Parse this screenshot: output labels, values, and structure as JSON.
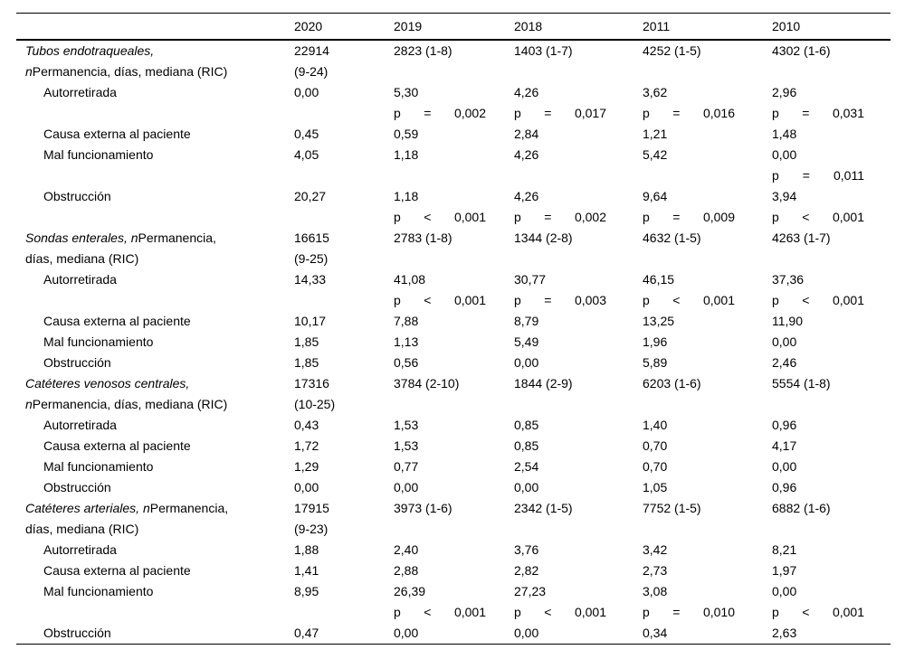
{
  "table": {
    "columns": [
      "",
      "2020",
      "2019",
      "2018",
      "2011",
      "2010"
    ],
    "rows": [
      {
        "type": "group",
        "segments": [
          {
            "t": "Tubos endotraqueales,",
            "i": 1
          },
          {
            "br": 1
          },
          {
            "t": "n",
            "i": 1
          },
          {
            "t": "Permanencia, días, mediana (RIC)",
            "i": 0
          }
        ],
        "values": [
          "22914\n(9-24)",
          "2823 (1-8)",
          "1403 (1-7)",
          "4252 (1-5)",
          "4302 (1-6)"
        ]
      },
      {
        "type": "sub",
        "label": "Autorretirada",
        "values": [
          "0,00",
          "5,30",
          "4,26",
          "3,62",
          "2,96"
        ]
      },
      {
        "type": "p",
        "values": [
          null,
          {
            "op": "=",
            "v": "0,002"
          },
          {
            "op": "=",
            "v": "0,017"
          },
          {
            "op": "=",
            "v": "0,016"
          },
          {
            "op": "=",
            "v": "0,031"
          }
        ]
      },
      {
        "type": "sub",
        "label": "Causa externa al paciente",
        "values": [
          "0,45",
          "0,59",
          "2,84",
          "1,21",
          "1,48"
        ]
      },
      {
        "type": "sub",
        "label": "Mal funcionamiento",
        "values": [
          "4,05",
          "1,18",
          "4,26",
          "5,42",
          "0,00"
        ]
      },
      {
        "type": "p",
        "values": [
          null,
          null,
          null,
          null,
          {
            "op": "=",
            "v": "0,011"
          }
        ]
      },
      {
        "type": "sub",
        "label": "Obstrucción",
        "values": [
          "20,27",
          "1,18",
          "4,26",
          "9,64",
          "3,94"
        ]
      },
      {
        "type": "p",
        "values": [
          null,
          {
            "op": "<",
            "v": "0,001"
          },
          {
            "op": "=",
            "v": "0,002"
          },
          {
            "op": "=",
            "v": "0,009"
          },
          {
            "op": "<",
            "v": "0,001"
          }
        ]
      },
      {
        "type": "group",
        "segments": [
          {
            "t": "Sondas enterales, n",
            "i": 1
          },
          {
            "t": "Permanencia,",
            "i": 0
          },
          {
            "br": 1
          },
          {
            "t": "días, mediana (RIC)",
            "i": 0
          }
        ],
        "values": [
          "16615\n(9-25)",
          "2783 (1-8)",
          "1344 (2-8)",
          "4632 (1-5)",
          "4263 (1-7)"
        ]
      },
      {
        "type": "sub",
        "label": "Autorretirada",
        "values": [
          "14,33",
          "41,08",
          "30,77",
          "46,15",
          "37,36"
        ]
      },
      {
        "type": "p",
        "values": [
          null,
          {
            "op": "<",
            "v": "0,001"
          },
          {
            "op": "=",
            "v": "0,003"
          },
          {
            "op": "<",
            "v": "0,001"
          },
          {
            "op": "<",
            "v": "0,001"
          }
        ]
      },
      {
        "type": "sub",
        "label": "Causa externa al paciente",
        "values": [
          "10,17",
          "7,88",
          "8,79",
          "13,25",
          "11,90"
        ]
      },
      {
        "type": "sub",
        "label": "Mal funcionamiento",
        "values": [
          "1,85",
          "1,13",
          "5,49",
          "1,96",
          "0,00"
        ]
      },
      {
        "type": "sub",
        "label": "Obstrucción",
        "values": [
          "1,85",
          "0,56",
          "0,00",
          "5,89",
          "2,46"
        ]
      },
      {
        "type": "group",
        "segments": [
          {
            "t": "Catéteres venosos centrales,",
            "i": 1
          },
          {
            "br": 1
          },
          {
            "t": "n",
            "i": 1
          },
          {
            "t": "Permanencia, días, mediana (RIC)",
            "i": 0
          }
        ],
        "values": [
          "17316\n(10-25)",
          "3784 (2-10)",
          "1844 (2-9)",
          "6203 (1-6)",
          "5554 (1-8)"
        ]
      },
      {
        "type": "sub",
        "label": "Autorretirada",
        "values": [
          "0,43",
          "1,53",
          "0,85",
          "1,40",
          "0,96"
        ]
      },
      {
        "type": "sub",
        "label": "Causa externa al paciente",
        "values": [
          "1,72",
          "1,53",
          "0,85",
          "0,70",
          "4,17"
        ]
      },
      {
        "type": "sub",
        "label": "Mal funcionamiento",
        "values": [
          "1,29",
          "0,77",
          "2,54",
          "0,70",
          "0,00"
        ]
      },
      {
        "type": "sub",
        "label": "Obstrucción",
        "values": [
          "0,00",
          "0,00",
          "0,00",
          "1,05",
          "0,96"
        ]
      },
      {
        "type": "group",
        "segments": [
          {
            "t": "Catéteres arteriales, n",
            "i": 1
          },
          {
            "t": "Permanencia,",
            "i": 0
          },
          {
            "br": 1
          },
          {
            "t": "días, mediana (RIC)",
            "i": 0
          }
        ],
        "values": [
          "17915\n(9-23)",
          "3973 (1-6)",
          "2342 (1-5)",
          "7752 (1-5)",
          "6882 (1-6)"
        ]
      },
      {
        "type": "sub",
        "label": "Autorretirada",
        "values": [
          "1,88",
          "2,40",
          "3,76",
          "3,42",
          "8,21"
        ]
      },
      {
        "type": "sub",
        "label": "Causa externa al paciente",
        "values": [
          "1,41",
          "2,88",
          "2,82",
          "2,73",
          "1,97"
        ]
      },
      {
        "type": "sub",
        "label": "Mal funcionamiento",
        "values": [
          "8,95",
          "26,39",
          "27,23",
          "3,08",
          "0,00"
        ]
      },
      {
        "type": "p",
        "values": [
          null,
          {
            "op": "<",
            "v": "0,001"
          },
          {
            "op": "<",
            "v": "0,001"
          },
          {
            "op": "=",
            "v": "0,010"
          },
          {
            "op": "<",
            "v": "0,001"
          }
        ]
      },
      {
        "type": "sub",
        "label": "Obstrucción",
        "values": [
          "0,47",
          "0,00",
          "0,00",
          "0,34",
          "2,63"
        ]
      }
    ],
    "p_symbol": "p"
  }
}
